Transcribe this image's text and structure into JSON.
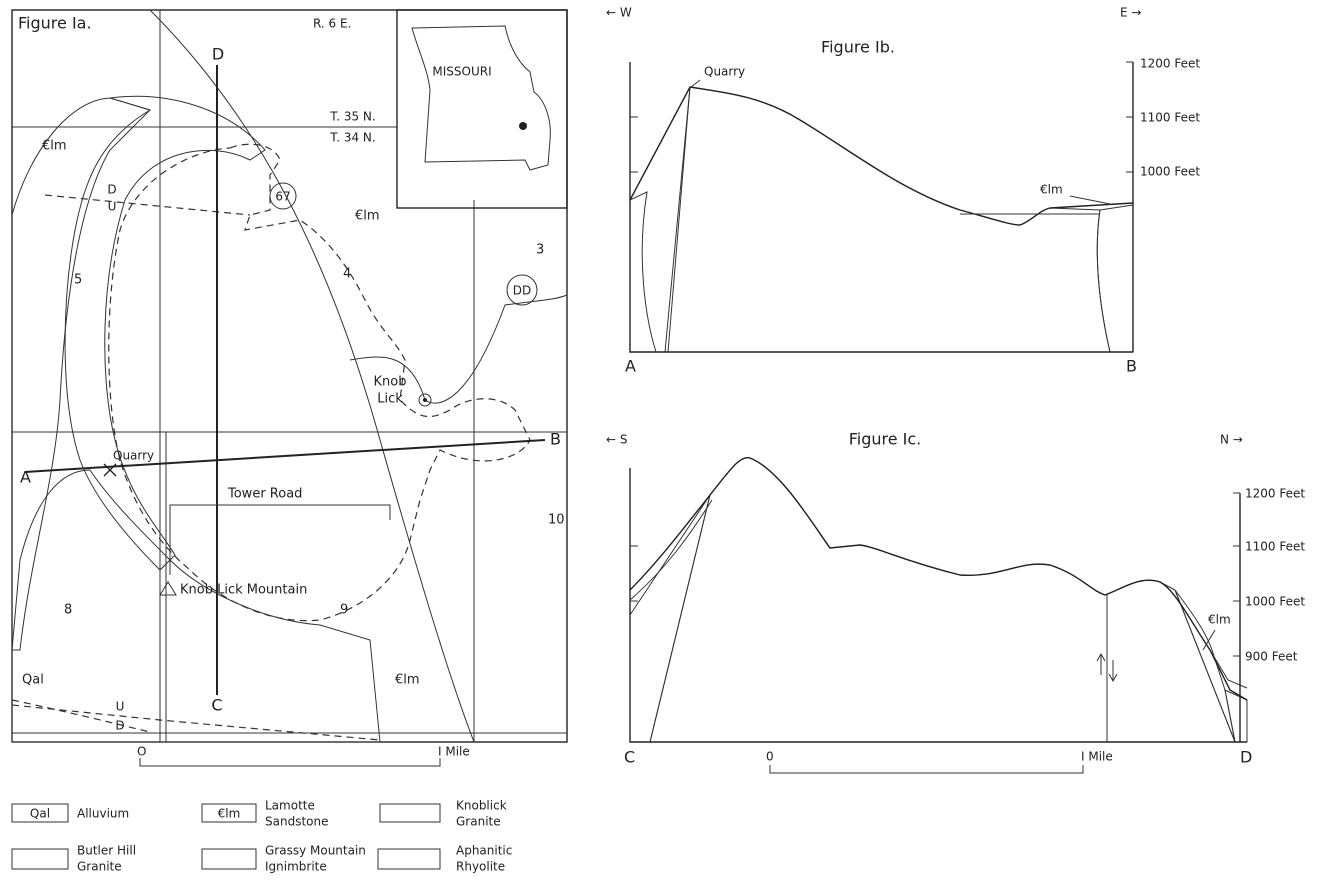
{
  "figure_1a": {
    "title": "Figure Ia.",
    "range": "R. 6 E.",
    "township_north": "T. 35 N.",
    "township_south": "T. 34 N.",
    "inset_label": "MISSOURI",
    "section_end_d": "D",
    "section_end_c": "C",
    "section_end_a": "A",
    "section_end_b": "B",
    "formation_labels": [
      "€lm",
      "€lm",
      "€lm",
      "Qal"
    ],
    "section_numbers": [
      "5",
      "4",
      "3",
      "8",
      "9",
      "10"
    ],
    "highway_67": "67",
    "highway_dd": "DD",
    "town_lines": [
      "Knob",
      "Lick"
    ],
    "quarry": "Quarry",
    "road": "Tower Road",
    "mountain": "Knob Lick Mountain",
    "fault_upper": [
      "D",
      "U"
    ],
    "fault_lower": [
      "U",
      "D"
    ],
    "scale": [
      "O",
      "I Mile"
    ]
  },
  "legend": [
    {
      "symbol": "Qal",
      "label_lines": [
        "Alluvium"
      ]
    },
    {
      "symbol": "€lm",
      "label_lines": [
        "Lamotte",
        "Sandstone"
      ]
    },
    {
      "label_lines": [
        "Knoblick",
        "Granite"
      ]
    },
    {
      "label_lines": [
        "Butler Hill",
        "Granite"
      ]
    },
    {
      "label_lines": [
        "Grassy Mountain",
        "Ignimbrite"
      ]
    },
    {
      "label_lines": [
        "Aphanitic",
        "Rhyolite"
      ]
    }
  ],
  "figure_1b": {
    "title": "Figure Ib.",
    "west": "← W",
    "east": "E →",
    "quarry": "Quarry",
    "formation": "€lm",
    "elevations": [
      "1200 Feet",
      "1100 Feet",
      "1000 Feet"
    ],
    "ends": [
      "A",
      "B"
    ]
  },
  "figure_1c": {
    "title": "Figure Ic.",
    "south": "← S",
    "north": "N →",
    "formation": "€lm",
    "elevations": [
      "1200 Feet",
      "1100 Feet",
      "1000 Feet",
      "900 Feet"
    ],
    "ends": [
      "C",
      "D"
    ],
    "scale": [
      "0",
      "I Mile"
    ]
  }
}
